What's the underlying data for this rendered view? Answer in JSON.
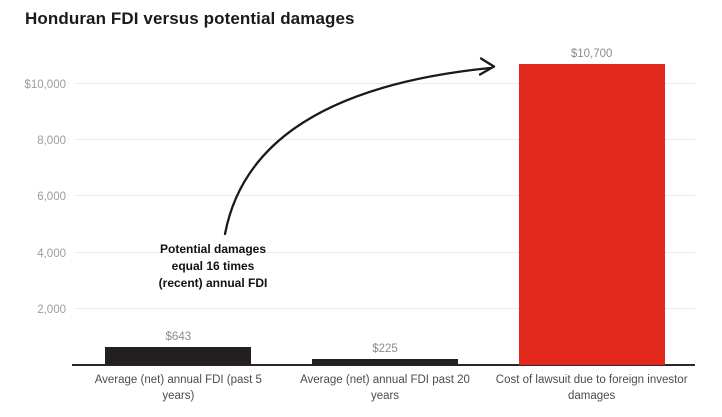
{
  "title": "Honduran FDI versus potential damages",
  "annotation": {
    "lines": [
      "Potential damages",
      "equal 16 times",
      "(recent) annual FDI"
    ]
  },
  "chart_data": {
    "type": "bar",
    "title": "Honduran FDI versus potential damages",
    "xlabel": "",
    "ylabel": "",
    "categories": [
      "Average (net) annual FDI (past 5 years)",
      "Average (net) annual FDI past 20 years",
      "Cost of lawsuit due to foreign investor damages"
    ],
    "values": [
      643,
      225,
      10700
    ],
    "value_labels": [
      "$643",
      "$225",
      "$10,700"
    ],
    "bar_colors": [
      "#231f20",
      "#231f20",
      "#e2271d"
    ],
    "ylim": [
      0,
      10850
    ],
    "yticks": [
      2000,
      4000,
      6000,
      8000,
      10000
    ],
    "ytick_labels": [
      "2,000",
      "4,000",
      "6,000",
      "8,000",
      "$10,000"
    ],
    "grid": true,
    "legend": false,
    "annotation": "Potential damages equal 16 times (recent) annual FDI"
  },
  "colors": {
    "background": "#ffffff",
    "title_text": "#1a1a1a",
    "bar_dark": "#231f20",
    "bar_red": "#e2271d",
    "gridline": "#e9e9e9",
    "baseline": "#2b2728",
    "tick_text": "#9c9c9c",
    "value_text": "#8c8c8c",
    "category_text": "#4c4c4c",
    "annotation_text": "#111111"
  }
}
